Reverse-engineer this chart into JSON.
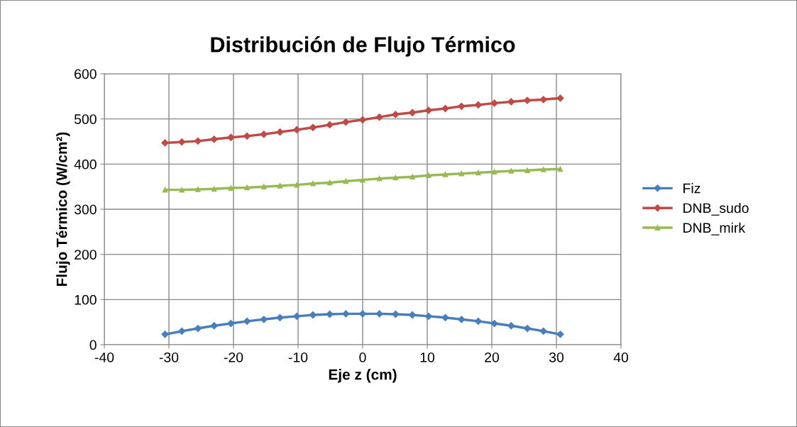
{
  "chart_data": {
    "type": "line",
    "title": "Distribución de Flujo Térmico",
    "xlabel": "Eje z (cm)",
    "ylabel": "Flujo Térmico (W/cm²)",
    "x": [
      -30.6,
      -28,
      -25.5,
      -23,
      -20.4,
      -17.9,
      -15.3,
      -12.8,
      -10.2,
      -7.7,
      -5.1,
      -2.6,
      0,
      2.6,
      5.1,
      7.7,
      10.2,
      12.8,
      15.3,
      17.9,
      20.4,
      23,
      25.5,
      28,
      30.6
    ],
    "series": [
      {
        "name": "Fiz",
        "color": "#4a7ebb",
        "marker": "diamond",
        "values": [
          23,
          30,
          36,
          42,
          47,
          52,
          56,
          60,
          63,
          66,
          67.5,
          68.5,
          68.5,
          68.5,
          67.5,
          66,
          63,
          60,
          56,
          52,
          47,
          42,
          36,
          30,
          23
        ]
      },
      {
        "name": "DNB_sudo",
        "color": "#be4b48",
        "marker": "diamond",
        "values": [
          447,
          449,
          451,
          455,
          459,
          462,
          466,
          471,
          476,
          481,
          487,
          493,
          498,
          504,
          510,
          514,
          519,
          523,
          528,
          531,
          535,
          538,
          541,
          543,
          546
        ]
      },
      {
        "name": "DNB_mirk",
        "color": "#98b954",
        "marker": "triangle",
        "values": [
          343,
          343,
          344,
          345,
          347,
          348,
          350,
          352,
          354,
          357,
          359,
          362,
          365,
          368,
          370,
          372,
          375,
          377,
          379,
          381,
          383,
          385,
          386,
          388,
          389
        ]
      }
    ],
    "xlim": [
      -40,
      40
    ],
    "xticks": [
      -40,
      -30,
      -20,
      -10,
      0,
      10,
      20,
      30,
      40
    ],
    "ylim": [
      0,
      600
    ],
    "yticks": [
      0,
      100,
      200,
      300,
      400,
      500,
      600
    ],
    "grid": true,
    "legend": "right",
    "line_style": "solid"
  }
}
